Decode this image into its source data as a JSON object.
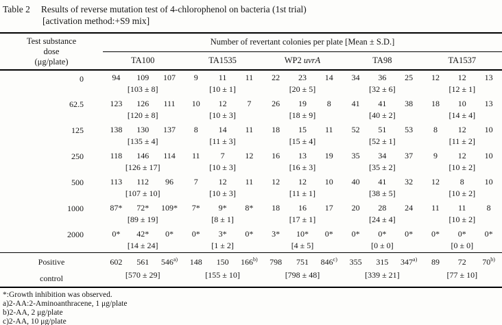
{
  "title": {
    "label": "Table 2",
    "text": "Results of reverse mutation test of 4-chlorophenol on bacteria (1st trial)",
    "subtitle": "[activation method:+S9 mix]"
  },
  "table": {
    "dose_header": "Test substance\ndose\n(μg/plate)",
    "span_header": "Number of revertant colonies per plate [Mean ± S.D.]",
    "strains": [
      {
        "text": "TA100"
      },
      {
        "text": "TA1535"
      },
      {
        "text": "WP2 ",
        "italic": "uvrA"
      },
      {
        "text": "TA98"
      },
      {
        "text": "TA1537"
      }
    ],
    "rows": [
      {
        "dose": "0",
        "counts": [
          [
            "94",
            "109",
            "107"
          ],
          [
            "9",
            "11",
            "11"
          ],
          [
            "22",
            "23",
            "14"
          ],
          [
            "34",
            "36",
            "25"
          ],
          [
            "12",
            "12",
            "13"
          ]
        ],
        "means": [
          "[103 ± 8]",
          "[10 ± 1]",
          "[20 ± 5]",
          "[32 ± 6]",
          "[12 ± 1]"
        ]
      },
      {
        "dose": "62.5",
        "counts": [
          [
            "123",
            "126",
            "111"
          ],
          [
            "10",
            "12",
            "7"
          ],
          [
            "26",
            "19",
            "8"
          ],
          [
            "41",
            "41",
            "38"
          ],
          [
            "18",
            "10",
            "13"
          ]
        ],
        "means": [
          "[120 ± 8]",
          "[10 ± 3]",
          "[18 ± 9]",
          "[40 ± 2]",
          "[14 ± 4]"
        ]
      },
      {
        "dose": "125",
        "counts": [
          [
            "138",
            "130",
            "137"
          ],
          [
            "8",
            "14",
            "11"
          ],
          [
            "18",
            "15",
            "11"
          ],
          [
            "52",
            "51",
            "53"
          ],
          [
            "8",
            "12",
            "10"
          ]
        ],
        "means": [
          "[135 ± 4]",
          "[11 ± 3]",
          "[15 ± 4]",
          "[52 ± 1]",
          "[11 ± 2]"
        ]
      },
      {
        "dose": "250",
        "counts": [
          [
            "118",
            "146",
            "114"
          ],
          [
            "11",
            "7",
            "12"
          ],
          [
            "16",
            "13",
            "19"
          ],
          [
            "35",
            "34",
            "37"
          ],
          [
            "9",
            "12",
            "10"
          ]
        ],
        "means": [
          "[126 ± 17]",
          "[10 ± 3]",
          "[16 ± 3]",
          "[35 ± 2]",
          "[10 ± 2]"
        ]
      },
      {
        "dose": "500",
        "counts": [
          [
            "113",
            "112",
            "96"
          ],
          [
            "7",
            "12",
            "11"
          ],
          [
            "12",
            "12",
            "10"
          ],
          [
            "40",
            "41",
            "32"
          ],
          [
            "12",
            "8",
            "10"
          ]
        ],
        "means": [
          "[107 ± 10]",
          "[10 ± 3]",
          "[11 ± 1]",
          "[38 ± 5]",
          "[10 ± 2]"
        ]
      },
      {
        "dose": "1000",
        "counts": [
          [
            "87*",
            "72*",
            "109*"
          ],
          [
            "7*",
            "9*",
            "8*"
          ],
          [
            "18",
            "16",
            "17"
          ],
          [
            "20",
            "28",
            "24"
          ],
          [
            "11",
            "11",
            "8"
          ]
        ],
        "means": [
          "[89 ± 19]",
          "[8 ± 1]",
          "[17 ± 1]",
          "[24 ± 4]",
          "[10 ± 2]"
        ]
      },
      {
        "dose": "2000",
        "counts": [
          [
            "0*",
            "42*",
            "0*"
          ],
          [
            "0*",
            "3*",
            "0*"
          ],
          [
            "3*",
            "10*",
            "0*"
          ],
          [
            "0*",
            "0*",
            "0*"
          ],
          [
            "0*",
            "0*",
            "0*"
          ]
        ],
        "means": [
          "[14 ± 24]",
          "[1 ± 2]",
          "[4 ± 5]",
          "[0 ± 0]",
          "[0 ± 0]"
        ]
      },
      {
        "dose": "Positive\ncontrol",
        "is_control": true,
        "counts": [
          [
            "602",
            "561",
            "546^a)"
          ],
          [
            "148",
            "150",
            "166^b)"
          ],
          [
            "798",
            "751",
            "846^c)"
          ],
          [
            "355",
            "315",
            "347^a)"
          ],
          [
            "89",
            "72",
            "70^b)"
          ]
        ],
        "means": [
          "[570 ± 29]",
          "[155 ± 10]",
          "[798 ± 48]",
          "[339 ± 21]",
          "[77 ± 10]"
        ]
      }
    ]
  },
  "footnotes": [
    "*:Growth inhibition was observed.",
    "a)2-AA:2-Aminoanthracene, 1 μg/plate",
    "b)2-AA, 2 μg/plate",
    "c)2-AA, 10 μg/plate"
  ]
}
